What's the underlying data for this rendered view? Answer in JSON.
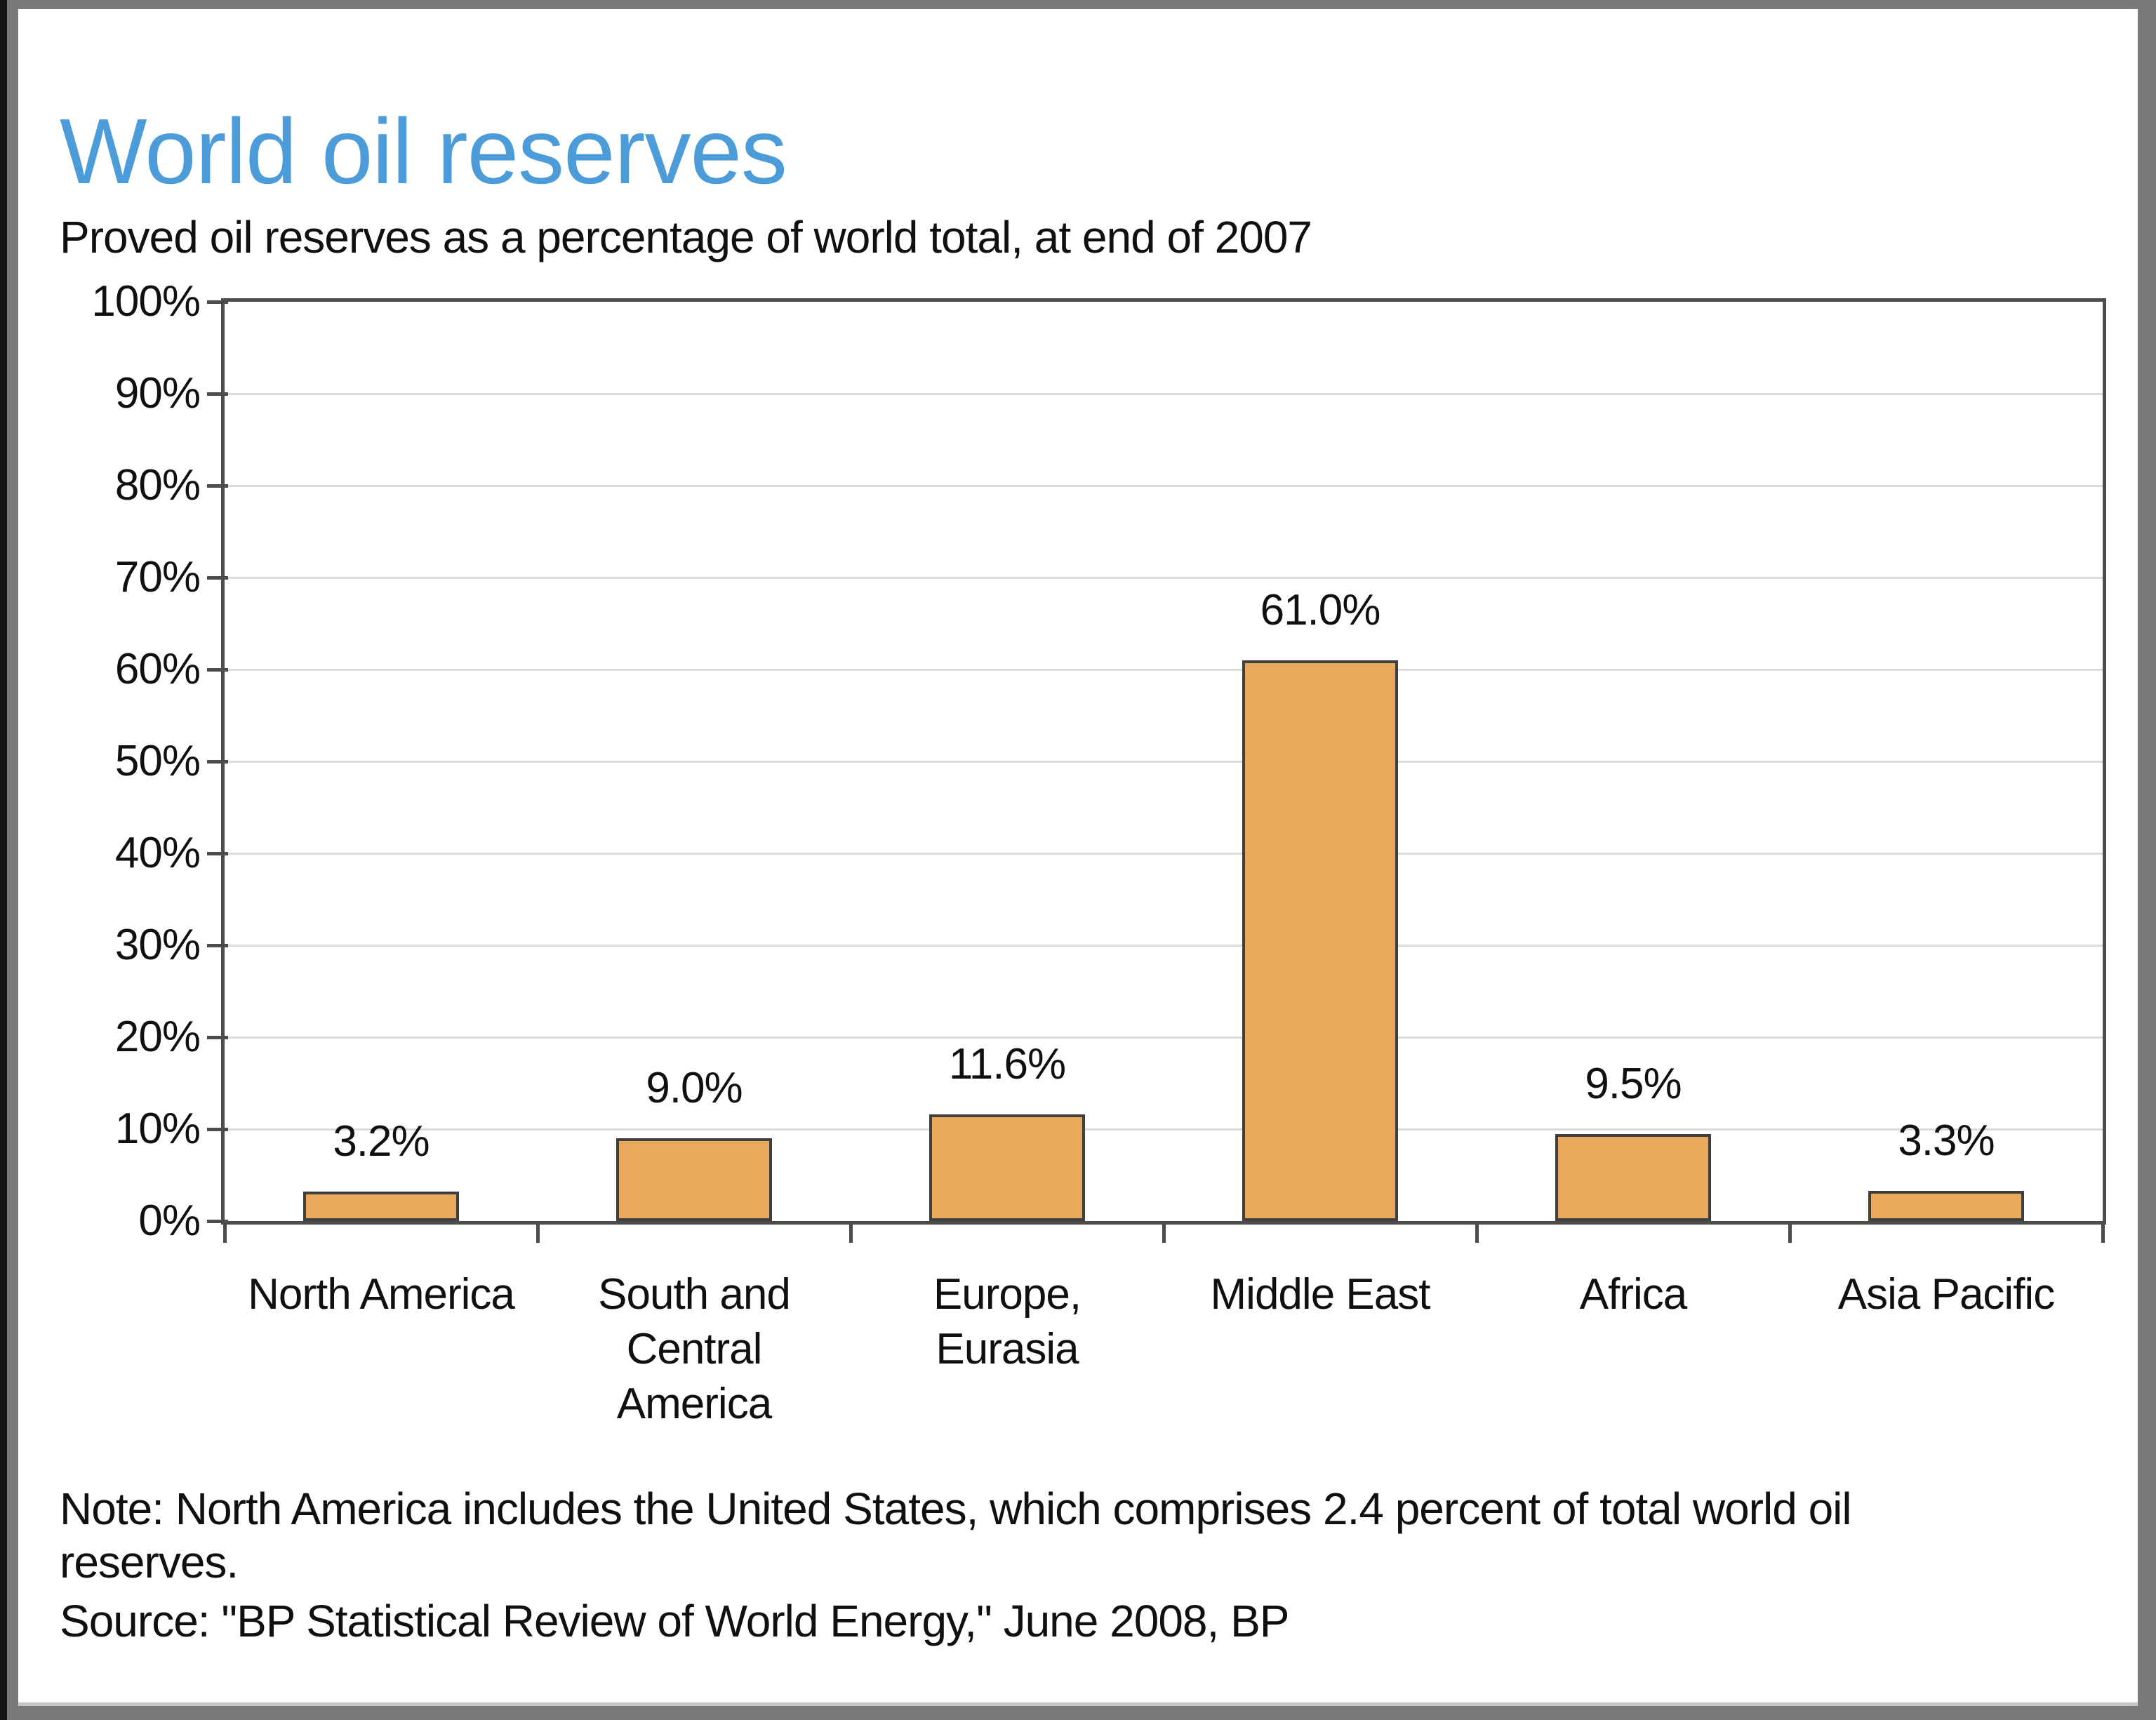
{
  "header": {
    "title": "World oil reserves",
    "subtitle": "Proved oil reserves as a percentage of world total, at end of 2007"
  },
  "chart_data": {
    "type": "bar",
    "title": "World oil reserves",
    "subtitle": "Proved oil reserves as a percentage of world total, at end of 2007",
    "categories": [
      "North America",
      "South and Central America",
      "Europe, Eurasia",
      "Middle East",
      "Africa",
      "Asia Pacific"
    ],
    "category_label_lines": [
      [
        "North America"
      ],
      [
        "South and",
        "Central",
        "America"
      ],
      [
        "Europe,",
        "Eurasia"
      ],
      [
        "Middle East"
      ],
      [
        "Africa"
      ],
      [
        "Asia Pacific"
      ]
    ],
    "values": [
      3.2,
      9.0,
      11.6,
      61.0,
      9.5,
      3.3
    ],
    "value_labels": [
      "3.2%",
      "9.0%",
      "11.6%",
      "61.0%",
      "9.5%",
      "3.3%"
    ],
    "xlabel": "",
    "ylabel": "",
    "ylim": [
      0,
      100
    ],
    "ytick_step": 10,
    "ytick_labels": [
      "0%",
      "10%",
      "20%",
      "30%",
      "40%",
      "50%",
      "60%",
      "70%",
      "80%",
      "90%",
      "100%"
    ],
    "grid": "horizontal",
    "legend_position": "none"
  },
  "footer": {
    "note_lines": [
      "Note: North America includes the United States, which comprises 2.4 percent of total world oil",
      "reserves."
    ],
    "source": "Source: \"BP Statistical Review of World Energy,\" June 2008, BP"
  },
  "colors": {
    "title_blue": "#4B9CD9",
    "bar_fill": "#E9A85C",
    "bar_border": "#3F3F3F",
    "axis_line": "#4C4C4C",
    "gridline": "#DBDBDB",
    "text": "#101010",
    "frame_gray": "#7A7A7A",
    "frame_black": "#141414",
    "panel_bottom_line": "#C6C6C6"
  }
}
